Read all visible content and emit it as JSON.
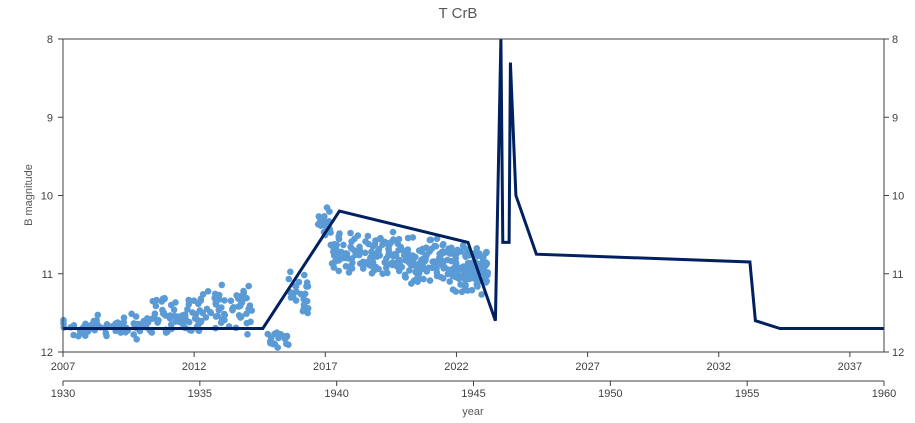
{
  "chart_data": {
    "type": "scatter",
    "title": "T CrB",
    "xlabel": "year",
    "ylabel": "B magnitude",
    "y_axis": {
      "min": 8,
      "max": 12,
      "inverted": true,
      "ticks": [
        "8",
        "9",
        "10",
        "11",
        "12"
      ],
      "mirrored_right": true
    },
    "x_axis_top": {
      "min": 2007,
      "max": 2038.3,
      "ticks": [
        "2007",
        "2012",
        "2017",
        "2022",
        "2027",
        "2032",
        "2037"
      ]
    },
    "x_axis_bottom": {
      "min": 1930,
      "max": 1960,
      "ticks": [
        "1930",
        "1935",
        "1940",
        "1945",
        "1950",
        "1955",
        "1960"
      ]
    },
    "grid": false,
    "colors": {
      "scatter": "#5b9bd5",
      "line": "#002060",
      "axis": "#404040",
      "title": "#595959"
    },
    "series": [
      {
        "type": "line",
        "axis": "bottom",
        "points": [
          [
            1930,
            11.7
          ],
          [
            1933.5,
            11.7
          ],
          [
            1934.8,
            11.7
          ],
          [
            1937.3,
            11.7
          ],
          [
            1940.1,
            10.2
          ],
          [
            1944.8,
            10.6
          ],
          [
            1945.8,
            11.6
          ],
          [
            1946.0,
            8.0
          ],
          [
            1946.07,
            10.6
          ],
          [
            1946.3,
            10.6
          ],
          [
            1946.35,
            8.3
          ],
          [
            1946.55,
            10.0
          ],
          [
            1947.3,
            10.75
          ],
          [
            1955.1,
            10.85
          ],
          [
            1955.3,
            11.6
          ],
          [
            1956.2,
            11.7
          ],
          [
            1960,
            11.7
          ]
        ]
      },
      {
        "type": "scatter",
        "axis": "top",
        "clusters": [
          {
            "x_range": [
              2007.0,
              2010.4
            ],
            "mag_center": 11.68,
            "mag_spread": 0.2,
            "count": 70
          },
          {
            "x_range": [
              2010.4,
              2012.2
            ],
            "mag_center": 11.55,
            "mag_spread": 0.3,
            "count": 60
          },
          {
            "x_range": [
              2012.2,
              2014.2
            ],
            "mag_center": 11.45,
            "mag_spread": 0.35,
            "count": 60
          },
          {
            "x_range": [
              2014.8,
              2015.6
            ],
            "mag_center": 11.8,
            "mag_spread": 0.15,
            "count": 20
          },
          {
            "x_range": [
              2015.6,
              2016.4
            ],
            "mag_center": 11.25,
            "mag_spread": 0.35,
            "count": 25
          },
          {
            "x_range": [
              2016.7,
              2017.2
            ],
            "mag_center": 10.4,
            "mag_spread": 0.3,
            "count": 20
          },
          {
            "x_range": [
              2017.2,
              2020.0
            ],
            "mag_center": 10.75,
            "mag_spread": 0.3,
            "count": 120
          },
          {
            "x_range": [
              2020.0,
              2021.8
            ],
            "mag_center": 10.85,
            "mag_spread": 0.35,
            "count": 100
          },
          {
            "x_range": [
              2021.8,
              2023.2
            ],
            "mag_center": 10.95,
            "mag_spread": 0.35,
            "count": 110
          }
        ]
      }
    ]
  }
}
